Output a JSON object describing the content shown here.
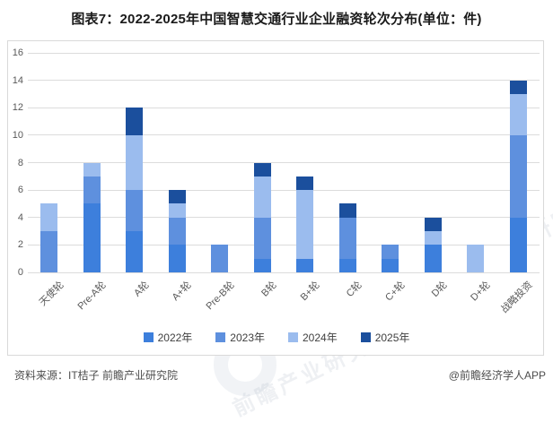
{
  "title": "图表7：2022-2025年中国智慧交通行业企业融资轮次分布(单位：件)",
  "chart_data": {
    "type": "bar",
    "stacked": true,
    "title": "图表7：2022-2025年中国智慧交通行业企业融资轮次分布(单位：件)",
    "unit_label": "件",
    "categories": [
      "天使轮",
      "Pre-A轮",
      "A轮",
      "A+轮",
      "Pre-B轮",
      "B轮",
      "B+轮",
      "C轮",
      "C+轮",
      "D轮",
      "D+轮",
      "战略投资"
    ],
    "series": [
      {
        "name": "2022年",
        "color": "#3D7FDC",
        "values": [
          0,
          5,
          3,
          2,
          0,
          1,
          1,
          1,
          1,
          2,
          0,
          4
        ]
      },
      {
        "name": "2023年",
        "color": "#5E90DE",
        "values": [
          3,
          2,
          3,
          2,
          2,
          3,
          0,
          3,
          1,
          0,
          0,
          6
        ]
      },
      {
        "name": "2024年",
        "color": "#9BBCEE",
        "values": [
          2,
          1,
          4,
          1,
          0,
          3,
          5,
          0,
          0,
          1,
          2,
          3
        ]
      },
      {
        "name": "2025年",
        "color": "#1B4F9D",
        "values": [
          0,
          0,
          2,
          1,
          0,
          1,
          1,
          1,
          0,
          1,
          0,
          1
        ]
      }
    ],
    "totals": [
      5,
      8,
      12,
      6,
      2,
      8,
      7,
      5,
      2,
      4,
      2,
      14
    ],
    "ylim": [
      0,
      16
    ],
    "yticks": [
      0,
      2,
      4,
      6,
      8,
      10,
      12,
      14,
      16
    ],
    "grid": true,
    "legend_position": "bottom"
  },
  "footer": {
    "source": "资料来源：IT桔子 前瞻产业研究院",
    "credit": "@前瞻经济学人APP"
  },
  "watermark": "前瞻产业研究院",
  "colors": {
    "gridline": "#dcdcdc",
    "box_border": "#d9d9d9",
    "axis_text": "#595959"
  }
}
